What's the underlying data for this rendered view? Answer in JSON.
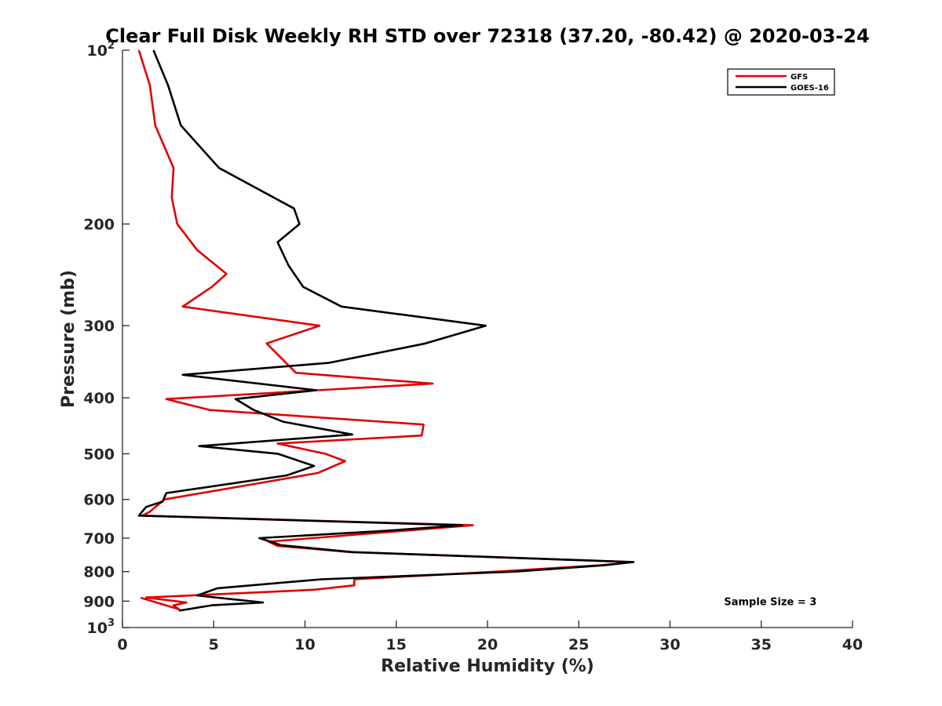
{
  "chart_data": {
    "type": "line",
    "title": "Clear Full Disk Weekly RH STD over 72318 (37.20, -80.42) @ 2020-03-24",
    "xlabel": "Relative Humidity (%)",
    "ylabel": "Pressure (mb)",
    "xlim": [
      0,
      40
    ],
    "ylim": [
      100,
      1000
    ],
    "y_scale": "log",
    "y_reversed": true,
    "x_ticks": [
      0,
      5,
      10,
      15,
      20,
      25,
      30,
      35,
      40
    ],
    "x_tick_labels": [
      "0",
      "5",
      "10",
      "15",
      "20",
      "25",
      "30",
      "35",
      "40"
    ],
    "y_ticks": [
      {
        "value": 100,
        "label": "10",
        "exp": "2"
      },
      {
        "value": 200,
        "label": "200"
      },
      {
        "value": 300,
        "label": "300"
      },
      {
        "value": 400,
        "label": "400"
      },
      {
        "value": 500,
        "label": "500"
      },
      {
        "value": 600,
        "label": "600"
      },
      {
        "value": 700,
        "label": "700"
      },
      {
        "value": 800,
        "label": "800"
      },
      {
        "value": 900,
        "label": "900"
      },
      {
        "value": 1000,
        "label": "10",
        "exp": "3"
      }
    ],
    "grid": false,
    "legend_position": "top-right",
    "series": [
      {
        "name": "GFS",
        "color": "#e00000",
        "points": [
          [
            0.9,
            100
          ],
          [
            1.5,
            115
          ],
          [
            1.8,
            135
          ],
          [
            2.8,
            160
          ],
          [
            2.7,
            180
          ],
          [
            3.0,
            200
          ],
          [
            4.1,
            222
          ],
          [
            5.7,
            244
          ],
          [
            4.9,
            257
          ],
          [
            3.3,
            278
          ],
          [
            10.8,
            300
          ],
          [
            7.9,
            322
          ],
          [
            9.5,
            362
          ],
          [
            17.0,
            378
          ],
          [
            2.4,
            402
          ],
          [
            4.8,
            420
          ],
          [
            16.5,
            445
          ],
          [
            16.4,
            465
          ],
          [
            8.5,
            480
          ],
          [
            11.1,
            500
          ],
          [
            12.2,
            515
          ],
          [
            10.7,
            540
          ],
          [
            2.3,
            600
          ],
          [
            1.5,
            630
          ],
          [
            1.1,
            640
          ],
          [
            19.2,
            665
          ],
          [
            8.0,
            710
          ],
          [
            8.5,
            722
          ],
          [
            12.5,
            740
          ],
          [
            28.0,
            770
          ],
          [
            26.2,
            780
          ],
          [
            20.5,
            800
          ],
          [
            12.7,
            825
          ],
          [
            12.7,
            845
          ],
          [
            10.5,
            860
          ],
          [
            1.3,
            887
          ],
          [
            3.5,
            905
          ],
          [
            2.8,
            915
          ],
          [
            3.1,
            930
          ],
          [
            1.0,
            888
          ]
        ]
      },
      {
        "name": "GOES-16",
        "color": "#000000",
        "points": [
          [
            1.7,
            100
          ],
          [
            2.5,
            115
          ],
          [
            3.2,
            135
          ],
          [
            5.3,
            160
          ],
          [
            9.4,
            188
          ],
          [
            9.7,
            200
          ],
          [
            8.5,
            215
          ],
          [
            9.1,
            236
          ],
          [
            9.9,
            257
          ],
          [
            12.0,
            278
          ],
          [
            19.9,
            300
          ],
          [
            16.6,
            322
          ],
          [
            11.3,
            348
          ],
          [
            3.3,
            365
          ],
          [
            10.6,
            388
          ],
          [
            6.2,
            402
          ],
          [
            7.2,
            420
          ],
          [
            8.8,
            440
          ],
          [
            12.6,
            463
          ],
          [
            4.2,
            485
          ],
          [
            8.5,
            500
          ],
          [
            10.5,
            525
          ],
          [
            9.0,
            545
          ],
          [
            2.4,
            585
          ],
          [
            2.2,
            605
          ],
          [
            1.3,
            618
          ],
          [
            0.9,
            640
          ],
          [
            18.6,
            665
          ],
          [
            14.4,
            680
          ],
          [
            7.5,
            700
          ],
          [
            8.7,
            720
          ],
          [
            12.6,
            740
          ],
          [
            28.0,
            770
          ],
          [
            26.4,
            780
          ],
          [
            21.5,
            800
          ],
          [
            10.9,
            825
          ],
          [
            5.2,
            855
          ],
          [
            4.1,
            880
          ],
          [
            7.7,
            905
          ],
          [
            4.9,
            915
          ],
          [
            3.1,
            935
          ]
        ]
      }
    ],
    "annotations": [
      {
        "text": "Sample Size = 3",
        "x": 35.5,
        "y": 900
      }
    ]
  }
}
